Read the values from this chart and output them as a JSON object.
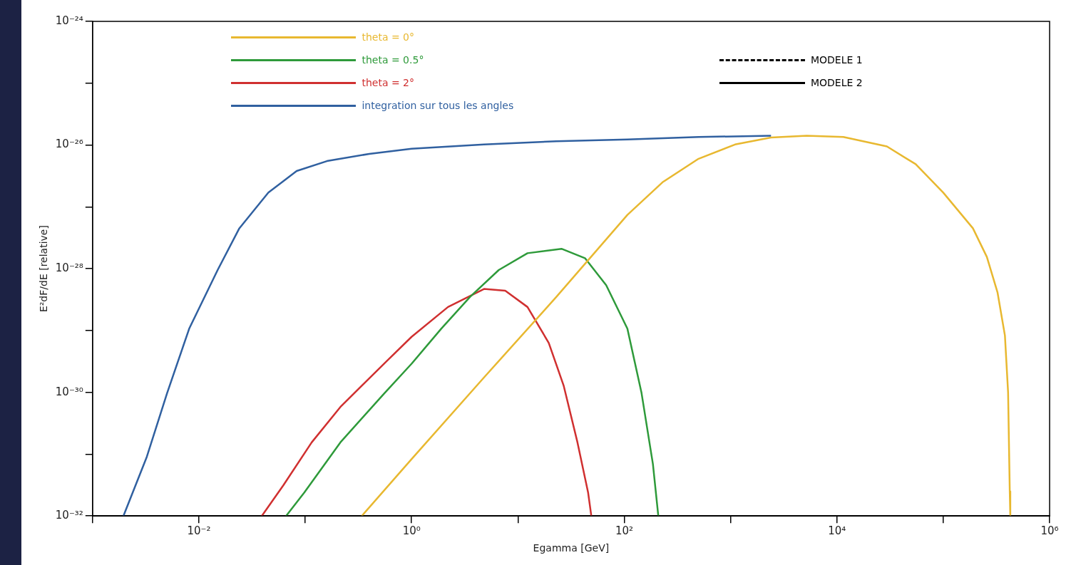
{
  "chart_data": {
    "type": "line",
    "xlabel": "Egamma [GeV]",
    "ylabel": "E²dF/dE [relative]",
    "log": "xy",
    "grid": false,
    "legend": "top",
    "marker": "none",
    "xlim": [
      0.001,
      1000000
    ],
    "ylim": [
      1e-32,
      1e-24
    ],
    "xticks": [
      {
        "value": 0.001,
        "label": null
      },
      {
        "value": 0.01,
        "label": "10⁻²"
      },
      {
        "value": 0.1,
        "label": null
      },
      {
        "value": 1,
        "label": "10⁰"
      },
      {
        "value": 10,
        "label": null
      },
      {
        "value": 100,
        "label": "10²"
      },
      {
        "value": 1000,
        "label": null
      },
      {
        "value": 10000,
        "label": "10⁴"
      },
      {
        "value": 100000,
        "label": null
      },
      {
        "value": 1000000,
        "label": "10⁶"
      }
    ],
    "yticks": [
      {
        "value": 1e-32,
        "label": "10⁻³²"
      },
      {
        "value": 1e-31,
        "label": null
      },
      {
        "value": 1e-30,
        "label": "10⁻³⁰"
      },
      {
        "value": 1e-29,
        "label": null
      },
      {
        "value": 1e-28,
        "label": "10⁻²⁸"
      },
      {
        "value": 1e-27,
        "label": null
      },
      {
        "value": 1e-26,
        "label": "10⁻²⁶"
      },
      {
        "value": 1e-25,
        "label": null
      },
      {
        "value": 1e-24,
        "label": "10⁻²⁴"
      }
    ],
    "series": [
      {
        "name": "theta = 0°",
        "color": "#e8b830",
        "x": [
          0.34,
          1,
          4.8,
          23,
          107,
          229,
          500,
          1100,
          2400,
          5200,
          11500,
          29500,
          55000,
          100000,
          190000,
          257000,
          324000,
          380000,
          407000,
          422000,
          427000
        ],
        "values": [
          1e-32,
          8.3e-32,
          1.74e-30,
          3.5e-29,
          7.4e-28,
          2.5e-27,
          6e-27,
          1.02e-26,
          1.32e-26,
          1.41e-26,
          1.35e-26,
          9.5e-27,
          4.9e-27,
          1.7e-27,
          4.5e-28,
          1.55e-28,
          4.1e-29,
          8.3e-30,
          1e-30,
          2.5e-32,
          1e-32
        ]
      },
      {
        "name": "theta = 0.5°",
        "color": "#2e9a3a",
        "x": [
          0.066,
          0.098,
          0.214,
          0.55,
          1,
          1.9,
          3.55,
          6.6,
          12.3,
          25.7,
          42.7,
          67.6,
          107,
          145,
          186,
          209
        ],
        "values": [
          1e-32,
          2.4e-32,
          1.55e-31,
          9.5e-31,
          2.9e-30,
          1.07e-29,
          3.5e-29,
          9.5e-29,
          1.78e-28,
          2.1e-28,
          1.48e-28,
          5.4e-29,
          1.07e-29,
          1e-30,
          6.9e-32,
          1e-32
        ]
      },
      {
        "name": "theta = 2°",
        "color": "#d03030",
        "x": [
          0.039,
          0.062,
          0.115,
          0.214,
          0.55,
          1,
          2.2,
          4.8,
          7.6,
          12.3,
          19.5,
          26.9,
          36.3,
          45.7,
          49
        ],
        "values": [
          1e-32,
          3.1e-32,
          1.55e-31,
          5.8e-31,
          2.9e-30,
          7.9e-30,
          2.4e-29,
          4.7e-29,
          4.4e-29,
          2.4e-29,
          6.3e-30,
          1.29e-30,
          1.55e-31,
          2.4e-32,
          1e-32
        ]
      },
      {
        "name": "integration sur tous les angles",
        "color": "#3060a0",
        "x": [
          0.00195,
          0.00324,
          0.005,
          0.0081,
          0.015,
          0.024,
          0.045,
          0.083,
          0.16,
          0.4,
          1,
          4.8,
          23,
          107,
          500,
          2400
        ],
        "values": [
          1e-32,
          9.1e-32,
          9.5e-31,
          1.07e-29,
          9.5e-29,
          4.5e-28,
          1.7e-27,
          3.8e-27,
          5.5e-27,
          7.2e-27,
          8.7e-27,
          1.02e-26,
          1.15e-26,
          1.23e-26,
          1.35e-26,
          1.41e-26
        ]
      },
      {
        "name": "MODELE 1",
        "color": "#000000",
        "line_style": "dashed"
      },
      {
        "name": "MODELE 2",
        "color": "#000000",
        "line_style": "solid"
      }
    ]
  }
}
